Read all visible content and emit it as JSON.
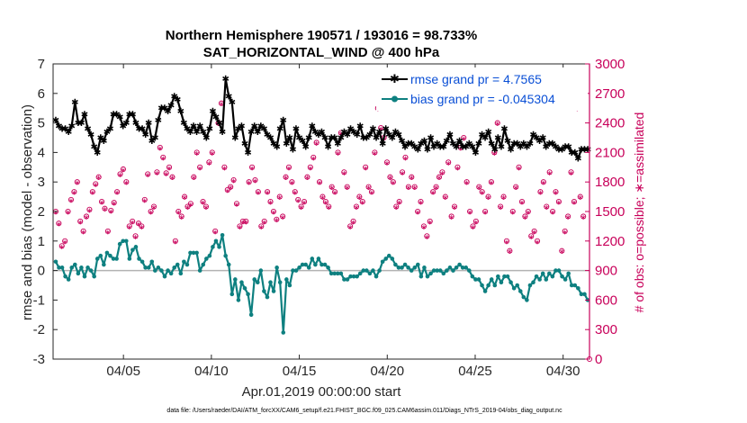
{
  "chart_data": {
    "type": "line",
    "title": "Northern Hemisphere 190571 / 193016 = 98.733%",
    "subtitle": "SAT_HORIZONTAL_WIND @ 400 hPa",
    "xlabel": "Apr.01,2019 00:00:00 start",
    "ylabel": "rmse and bias (model - observation)",
    "y2label": "# of obs: o=possible; ∗=assimilated",
    "footer": "data file: /Users/raeder/DAI/ATM_forcXX/CAM6_setup/f.e21.FHIST_BGC.f09_025.CAM6assim.011/Diags_NTrS_2019-04/obs_diag_output.nc",
    "xlim": [
      1,
      31.5
    ],
    "ylim": [
      -3,
      7
    ],
    "y2lim": [
      0,
      3000
    ],
    "x_ticks": [
      5,
      10,
      15,
      20,
      25,
      30
    ],
    "x_tick_labels": [
      "04/05",
      "04/10",
      "04/15",
      "04/20",
      "04/25",
      "04/30"
    ],
    "y_ticks": [
      "-3",
      "-2",
      "-1",
      "0",
      "1",
      "2",
      "3",
      "4",
      "5",
      "6",
      "7"
    ],
    "y2_ticks": [
      "0",
      "300",
      "600",
      "900",
      "1200",
      "1500",
      "1800",
      "2100",
      "2400",
      "2700",
      "3000"
    ],
    "series": [
      {
        "name": "rmse grand pr = 4.7565",
        "color": "#000000",
        "values": [
          5.1,
          4.9,
          4.8,
          4.8,
          4.7,
          4.9,
          5.7,
          5.0,
          5.0,
          5.3,
          4.8,
          4.6,
          4.2,
          4.0,
          4.5,
          4.4,
          4.7,
          4.8,
          5.3,
          5.3,
          5.2,
          4.9,
          5.0,
          5.3,
          5.3,
          5.0,
          4.8,
          4.8,
          4.6,
          5.0,
          4.4,
          4.5,
          5.1,
          5.5,
          5.5,
          5.4,
          5.6,
          5.9,
          5.8,
          5.4,
          5.0,
          4.8,
          4.7,
          4.9,
          4.7,
          4.9,
          4.7,
          4.5,
          4.8,
          5.4,
          5.2,
          5.0,
          4.7,
          6.5,
          5.9,
          5.7,
          4.5,
          4.8,
          4.9,
          4.3,
          4.0,
          4.7,
          4.9,
          4.7,
          4.9,
          4.8,
          4.6,
          4.5,
          4.3,
          4.2,
          4.8,
          5.1,
          4.3,
          4.5,
          4.1,
          4.8,
          4.5,
          4.4,
          4.2,
          4.5,
          4.9,
          4.7,
          4.6,
          4.7,
          4.5,
          4.2,
          4.5,
          4.5,
          4.3,
          4.5,
          4.7,
          4.6,
          4.8,
          4.7,
          4.6,
          4.9,
          4.5,
          4.5,
          4.6,
          4.8,
          4.5,
          4.7,
          4.3,
          4.8,
          4.6,
          4.5,
          4.7,
          4.6,
          4.4,
          4.2,
          4.3,
          4.3,
          4.2,
          4.1,
          4.3,
          4.4,
          4.1,
          4.5,
          4.2,
          4.3,
          4.2,
          4.2,
          4.4,
          4.6,
          4.3,
          4.2,
          4.4,
          4.2,
          4.2,
          4.3,
          4.2,
          4.0,
          4.3,
          4.6,
          4.5,
          4.7,
          4.3,
          4.1,
          4.5,
          4.2,
          4.8,
          4.4,
          4.1,
          4.3,
          4.3,
          4.2,
          4.3,
          4.2,
          4.3,
          4.6,
          4.5,
          4.4,
          4.5,
          4.2,
          4.3,
          4.3,
          4.2,
          4.1,
          4.1,
          4.2,
          4.2,
          4.0,
          4.0,
          3.8,
          4.1,
          4.1,
          4.1
        ]
      },
      {
        "name": "bias grand pr = -0.045304",
        "color": "#0e8080",
        "values": [
          0.3,
          0.1,
          0.1,
          -0.2,
          -0.3,
          0.1,
          0.2,
          -0.1,
          0.1,
          -0.2,
          0.1,
          0.0,
          -0.2,
          0.4,
          0.5,
          0.2,
          0.6,
          0.5,
          0.4,
          0.4,
          0.9,
          1.0,
          1.0,
          0.4,
          0.7,
          0.8,
          0.4,
          0.3,
          0.1,
          0.1,
          0.3,
          0.0,
          0.1,
          0.0,
          -0.2,
          0.0,
          -0.1,
          0.1,
          0.2,
          -0.1,
          0.3,
          0.2,
          0.6,
          0.6,
          0.6,
          0.0,
          0.2,
          0.4,
          0.5,
          0.8,
          1.0,
          0.8,
          1.2,
          0.5,
          0.2,
          -0.8,
          -0.3,
          -1.0,
          -0.4,
          -0.6,
          -0.8,
          -1.5,
          -0.3,
          -0.4,
          0.0,
          -0.7,
          -0.9,
          -0.4,
          -0.7,
          0.1,
          -0.4,
          -2.1,
          -0.3,
          -0.5,
          0.0,
          0.0,
          0.1,
          0.2,
          0.2,
          0.1,
          0.4,
          0.2,
          0.4,
          0.2,
          0.2,
          0.1,
          -0.1,
          -0.1,
          -0.1,
          -0.1,
          -0.3,
          -0.3,
          -0.2,
          -0.2,
          -0.2,
          -0.1,
          0.0,
          0.0,
          -0.1,
          0.0,
          -0.2,
          0.0,
          0.3,
          0.4,
          0.5,
          0.4,
          0.2,
          0.1,
          0.1,
          0.2,
          0.1,
          0.0,
          0.1,
          0.2,
          -0.2,
          0.1,
          -0.2,
          -0.1,
          0.0,
          0.0,
          0.0,
          -0.1,
          0.0,
          0.1,
          0.0,
          0.1,
          0.2,
          0.1,
          0.1,
          0.0,
          -0.2,
          -0.3,
          -0.3,
          -0.5,
          -0.7,
          -0.5,
          -0.3,
          -0.5,
          -0.2,
          -0.4,
          -0.2,
          -0.2,
          -0.4,
          -0.6,
          -0.5,
          -0.7,
          -0.9,
          -1.0,
          -0.5,
          -0.4,
          -0.2,
          -0.3,
          -0.1,
          -0.3,
          -0.1,
          -0.2,
          0.0,
          0.0,
          -0.2,
          -0.3,
          -0.1,
          -0.5,
          -0.5,
          -0.6,
          -0.8,
          -0.8,
          -1.0
        ]
      }
    ],
    "obs_possible": [
      1500,
      1380,
      1150,
      1200,
      1500,
      1620,
      1700,
      1800,
      1400,
      1300,
      1450,
      1520,
      1700,
      1780,
      1850,
      1600,
      1530,
      1300,
      1510,
      1590,
      1700,
      1880,
      1930,
      1800,
      1350,
      1400,
      1250,
      1380,
      1350,
      1620,
      1880,
      1500,
      1550,
      1900,
      2150,
      2050,
      1890,
      1950,
      1850,
      1200,
      1500,
      1450,
      1650,
      1550,
      1580,
      1850,
      2100,
      1950,
      1600,
      1550,
      2000,
      2100,
      1300,
      2400,
      2600,
      1950,
      1720,
      1750,
      1820,
      1580,
      1350,
      1400,
      1400,
      1800,
      1950,
      1820,
      1700,
      1350,
      1400,
      1700,
      1600,
      1500,
      1420,
      1650,
      1450,
      1850,
      1950,
      1800,
      1700,
      1620,
      1550,
      1600,
      1850,
      1950,
      2050,
      2200,
      1800,
      1650,
      1600,
      1550,
      1750,
      1700,
      2100,
      2300,
      1900,
      1750,
      1350,
      1400,
      1550,
      1650,
      1600,
      1950,
      1750,
      1700,
      2100,
      2550,
      2350,
      2250,
      2000,
      1850,
      1800,
      1550,
      1600,
      1900,
      2050,
      1750,
      1850,
      1750,
      1500,
      1600,
      1350,
      1250,
      1400,
      1700,
      1750,
      1850,
      1900,
      1650,
      2000,
      1450,
      1550,
      1950,
      2150,
      2250,
      1800,
      1500,
      1350,
      1400,
      1750,
      1700,
      1500,
      1650,
      1800,
      2100,
      2400,
      1550,
      1650,
      1200,
      1100,
      1500,
      1750,
      1950,
      1600,
      1450,
      1500,
      1250,
      1300,
      1200,
      1700,
      1800,
      1550,
      1900,
      1500,
      1700,
      1600,
      1100,
      1300,
      1450,
      1900,
      1600,
      2550,
      1650,
      1450
    ]
  }
}
